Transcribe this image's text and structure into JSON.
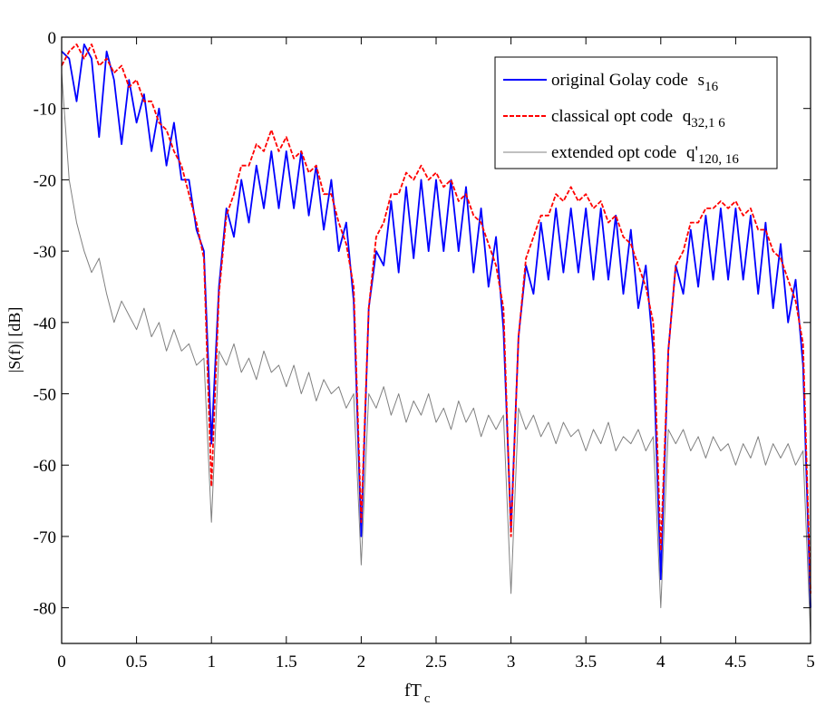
{
  "chart_data": {
    "type": "line",
    "xlabel": "fT",
    "xlabel_sub": "c",
    "ylabel": "|S(f)| [dB]",
    "xlim": [
      0,
      5
    ],
    "ylim": [
      -85,
      0
    ],
    "xticks": [
      "0",
      "0.5",
      "1",
      "1.5",
      "2",
      "2.5",
      "3",
      "3.5",
      "4",
      "4.5",
      "5"
    ],
    "xtick_values": [
      0,
      0.5,
      1,
      1.5,
      2,
      2.5,
      3,
      3.5,
      4,
      4.5,
      5
    ],
    "yticks": [
      "0",
      "-10",
      "-20",
      "-30",
      "-40",
      "-50",
      "-60",
      "-70",
      "-80"
    ],
    "ytick_values": [
      0,
      -10,
      -20,
      -30,
      -40,
      -50,
      -60,
      -70,
      -80
    ],
    "grid": false,
    "legend_placement": "top-right",
    "x": [
      0,
      0.05,
      0.1,
      0.15,
      0.2,
      0.25,
      0.3,
      0.35,
      0.4,
      0.45,
      0.5,
      0.55,
      0.6,
      0.65,
      0.7,
      0.75,
      0.8,
      0.85,
      0.9,
      0.95,
      1,
      1.05,
      1.1,
      1.15,
      1.2,
      1.25,
      1.3,
      1.35,
      1.4,
      1.45,
      1.5,
      1.55,
      1.6,
      1.65,
      1.7,
      1.75,
      1.8,
      1.85,
      1.9,
      1.95,
      2,
      2.05,
      2.1,
      2.15,
      2.2,
      2.25,
      2.3,
      2.35,
      2.4,
      2.45,
      2.5,
      2.55,
      2.6,
      2.65,
      2.7,
      2.75,
      2.8,
      2.85,
      2.9,
      2.95,
      3,
      3.05,
      3.1,
      3.15,
      3.2,
      3.25,
      3.3,
      3.35,
      3.4,
      3.45,
      3.5,
      3.55,
      3.6,
      3.65,
      3.7,
      3.75,
      3.8,
      3.85,
      3.9,
      3.95,
      4,
      4.05,
      4.1,
      4.15,
      4.2,
      4.25,
      4.3,
      4.35,
      4.4,
      4.45,
      4.5,
      4.55,
      4.6,
      4.65,
      4.7,
      4.75,
      4.8,
      4.85,
      4.9,
      4.95,
      5
    ],
    "series": [
      {
        "name": "original Golay code",
        "name_symbol": "s",
        "name_sub": "16",
        "color": "#0000ff",
        "style": "solid",
        "values": [
          -2,
          -3,
          -9,
          -1,
          -3,
          -14,
          -2,
          -6,
          -15,
          -6,
          -12,
          -8,
          -16,
          -10,
          -18,
          -12,
          -20,
          -20,
          -27,
          -30,
          -57,
          -35,
          -24,
          -28,
          -20,
          -26,
          -18,
          -24,
          -16,
          -24,
          -16,
          -24,
          -16,
          -25,
          -18,
          -27,
          -20,
          -30,
          -26,
          -37,
          -70,
          -38,
          -30,
          -32,
          -23,
          -33,
          -21,
          -31,
          -20,
          -30,
          -20,
          -30,
          -20,
          -30,
          -21,
          -33,
          -24,
          -35,
          -28,
          -41,
          -69,
          -42,
          -32,
          -36,
          -26,
          -34,
          -24,
          -33,
          -24,
          -33,
          -24,
          -34,
          -24,
          -34,
          -25,
          -36,
          -27,
          -38,
          -32,
          -44,
          -76,
          -44,
          -32,
          -36,
          -27,
          -35,
          -25,
          -34,
          -24,
          -34,
          -24,
          -34,
          -25,
          -36,
          -26,
          -38,
          -29,
          -40,
          -34,
          -46,
          -80
        ]
      },
      {
        "name": "classical opt code",
        "name_symbol": "q",
        "name_sub": "32,1 6",
        "color": "#ff0000",
        "style": "dashed",
        "values": [
          -4,
          -2,
          -1,
          -3,
          -1,
          -4,
          -3,
          -5,
          -4,
          -7,
          -6,
          -9,
          -9,
          -12,
          -13,
          -16,
          -18,
          -22,
          -26,
          -31,
          -63,
          -36,
          -25,
          -22,
          -18,
          -18,
          -15,
          -16,
          -13,
          -16,
          -14,
          -17,
          -16,
          -19,
          -18,
          -22,
          -22,
          -26,
          -29,
          -35,
          -68,
          -38,
          -28,
          -26,
          -22,
          -22,
          -19,
          -20,
          -18,
          -20,
          -19,
          -21,
          -20,
          -23,
          -22,
          -25,
          -26,
          -29,
          -32,
          -38,
          -70,
          -42,
          -31,
          -28,
          -25,
          -25,
          -22,
          -23,
          -21,
          -23,
          -22,
          -24,
          -23,
          -26,
          -25,
          -28,
          -29,
          -32,
          -35,
          -40,
          -72,
          -44,
          -32,
          -30,
          -26,
          -26,
          -24,
          -24,
          -23,
          -24,
          -23,
          -25,
          -24,
          -27,
          -27,
          -30,
          -31,
          -34,
          -37,
          -43,
          -78
        ]
      },
      {
        "name": "extended opt code",
        "name_symbol": "q'",
        "name_sub": "120, 16",
        "color": "#808080",
        "style": "solid",
        "values": [
          -5,
          -20,
          -26,
          -30,
          -33,
          -31,
          -36,
          -40,
          -37,
          -39,
          -41,
          -38,
          -42,
          -40,
          -44,
          -41,
          -44,
          -43,
          -46,
          -45,
          -68,
          -44,
          -46,
          -43,
          -47,
          -45,
          -48,
          -44,
          -47,
          -46,
          -49,
          -46,
          -50,
          -47,
          -51,
          -48,
          -50,
          -49,
          -52,
          -50,
          -74,
          -50,
          -52,
          -49,
          -53,
          -50,
          -54,
          -51,
          -53,
          -50,
          -54,
          -52,
          -55,
          -51,
          -54,
          -52,
          -56,
          -53,
          -55,
          -53,
          -78,
          -52,
          -55,
          -53,
          -56,
          -54,
          -57,
          -54,
          -56,
          -55,
          -58,
          -55,
          -57,
          -54,
          -58,
          -56,
          -57,
          -55,
          -58,
          -56,
          -80,
          -55,
          -57,
          -55,
          -58,
          -56,
          -59,
          -56,
          -58,
          -57,
          -60,
          -57,
          -59,
          -56,
          -60,
          -57,
          -59,
          -57,
          -60,
          -58,
          -84
        ]
      }
    ]
  }
}
